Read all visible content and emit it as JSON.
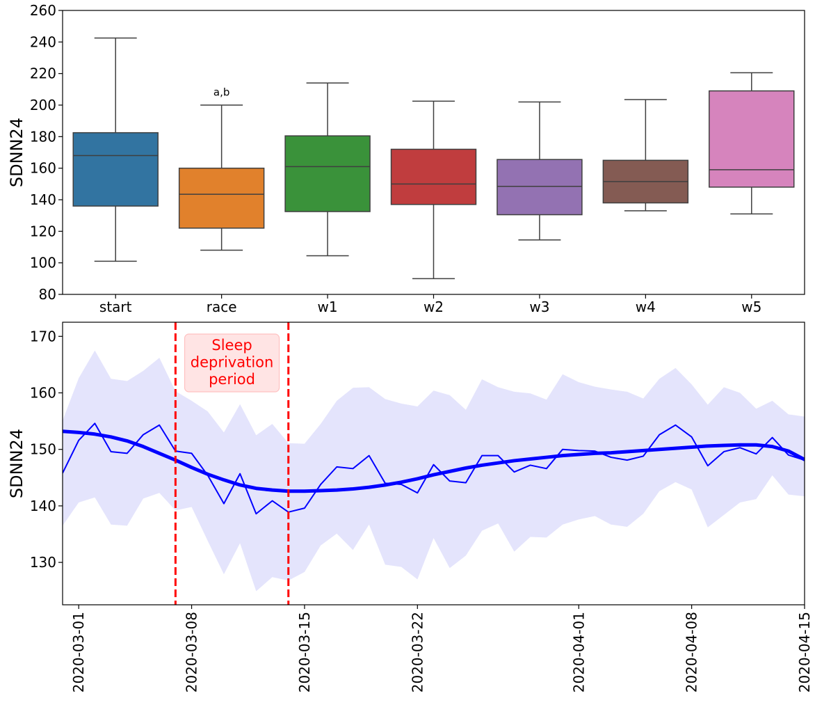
{
  "chart_data": [
    {
      "type": "box",
      "ylabel": "SDNN24",
      "ylim": [
        80,
        260
      ],
      "yticks": [
        80,
        100,
        120,
        140,
        160,
        180,
        200,
        220,
        240,
        260
      ],
      "grid": false,
      "categories": [
        "start",
        "race",
        "w1",
        "w2",
        "w3",
        "w4",
        "w5"
      ],
      "boxes": [
        {
          "label": "start",
          "color": "#3274a1",
          "whisker_low": 101,
          "q1": 136,
          "median": 168,
          "q3": 182.5,
          "whisker_high": 242.5
        },
        {
          "label": "race",
          "color": "#e1812c",
          "whisker_low": 108,
          "q1": 122,
          "median": 143.5,
          "q3": 160,
          "whisker_high": 200
        },
        {
          "label": "w1",
          "color": "#3a923a",
          "whisker_low": 104.5,
          "q1": 132.5,
          "median": 161,
          "q3": 180.5,
          "whisker_high": 214
        },
        {
          "label": "w2",
          "color": "#c03d3e",
          "whisker_low": 90,
          "q1": 137,
          "median": 150,
          "q3": 172,
          "whisker_high": 202.5
        },
        {
          "label": "w3",
          "color": "#9372b2",
          "whisker_low": 114.5,
          "q1": 130.5,
          "median": 148.5,
          "q3": 165.5,
          "whisker_high": 202
        },
        {
          "label": "w4",
          "color": "#845b53",
          "whisker_low": 133,
          "q1": 138,
          "median": 151.5,
          "q3": 165,
          "whisker_high": 203.5
        },
        {
          "label": "w5",
          "color": "#d684bd",
          "whisker_low": 131,
          "q1": 148,
          "median": 159,
          "q3": 209,
          "whisker_high": 220.5
        }
      ],
      "annotations": [
        {
          "category": "race",
          "text": "a,b",
          "y": 206
        }
      ]
    },
    {
      "type": "line",
      "ylabel": "SDNN24",
      "x_domain": [
        "2020-02-29",
        "2020-04-15"
      ],
      "ylim": [
        122.5,
        172.5
      ],
      "yticks": [
        130,
        140,
        150,
        160,
        170
      ],
      "xticks": [
        "2020-03-01",
        "2020-03-08",
        "2020-03-15",
        "2020-03-22",
        "2020-04-01",
        "2020-04-08",
        "2020-04-15"
      ],
      "grid": false,
      "series": [
        {
          "style": "daily",
          "color": "#0000ff",
          "x": [
            "2020-02-29",
            "2020-03-01",
            "2020-03-02",
            "2020-03-03",
            "2020-03-04",
            "2020-03-05",
            "2020-03-06",
            "2020-03-07",
            "2020-03-08",
            "2020-03-09",
            "2020-03-10",
            "2020-03-11",
            "2020-03-12",
            "2020-03-13",
            "2020-03-14",
            "2020-03-15",
            "2020-03-16",
            "2020-03-17",
            "2020-03-18",
            "2020-03-19",
            "2020-03-20",
            "2020-03-21",
            "2020-03-22",
            "2020-03-23",
            "2020-03-24",
            "2020-03-25",
            "2020-03-26",
            "2020-03-27",
            "2020-03-28",
            "2020-03-29",
            "2020-03-30",
            "2020-03-31",
            "2020-04-01",
            "2020-04-02",
            "2020-04-03",
            "2020-04-04",
            "2020-04-05",
            "2020-04-06",
            "2020-04-07",
            "2020-04-08",
            "2020-04-09",
            "2020-04-10",
            "2020-04-11",
            "2020-04-12",
            "2020-04-13",
            "2020-04-14",
            "2020-04-15"
          ],
          "y": [
            145.8,
            151.6,
            154.6,
            149.6,
            149.3,
            152.6,
            154.3,
            149.7,
            149.3,
            145.4,
            140.4,
            145.7,
            138.6,
            140.9,
            138.9,
            139.6,
            143.8,
            146.9,
            146.6,
            148.9,
            144.0,
            143.8,
            142.3,
            147.3,
            144.4,
            144.1,
            148.9,
            148.9,
            146.0,
            147.2,
            146.6,
            150.0,
            149.8,
            149.7,
            148.6,
            148.1,
            148.8,
            152.6,
            154.3,
            152.2,
            147.1,
            149.6,
            150.3,
            149.2,
            152.1,
            149.0,
            148.1
          ],
          "band_low": [
            136.5,
            140.6,
            141.5,
            136.7,
            136.5,
            141.3,
            142.3,
            139.2,
            139.8,
            133.8,
            127.9,
            133.4,
            124.9,
            127.4,
            126.8,
            128.3,
            133.0,
            135.1,
            132.2,
            136.7,
            129.6,
            129.2,
            127.0,
            134.3,
            129.0,
            131.2,
            135.6,
            136.9,
            131.9,
            134.5,
            134.4,
            136.7,
            137.6,
            138.2,
            136.7,
            136.3,
            138.6,
            142.6,
            144.2,
            142.9,
            136.2,
            138.4,
            140.6,
            141.2,
            145.4,
            142.0,
            141.7
          ],
          "band_high": [
            155.1,
            162.6,
            167.5,
            162.5,
            162.1,
            163.9,
            166.2,
            160.3,
            158.6,
            156.7,
            153.0,
            158.0,
            152.5,
            154.5,
            151.1,
            151.0,
            154.5,
            158.6,
            160.9,
            161.0,
            158.9,
            158.1,
            157.6,
            160.4,
            159.6,
            157.0,
            162.4,
            161.0,
            160.2,
            159.9,
            158.8,
            163.3,
            161.9,
            161.1,
            160.6,
            160.2,
            159.0,
            162.5,
            164.4,
            161.5,
            157.9,
            161.0,
            160.0,
            157.2,
            158.6,
            156.2,
            155.8
          ]
        },
        {
          "style": "smooth",
          "color": "#0000ff",
          "x": [
            "2020-02-29",
            "2020-03-01",
            "2020-03-02",
            "2020-03-03",
            "2020-03-04",
            "2020-03-05",
            "2020-03-06",
            "2020-03-07",
            "2020-03-08",
            "2020-03-09",
            "2020-03-10",
            "2020-03-11",
            "2020-03-12",
            "2020-03-13",
            "2020-03-14",
            "2020-03-15",
            "2020-03-16",
            "2020-03-17",
            "2020-03-18",
            "2020-03-19",
            "2020-03-20",
            "2020-03-21",
            "2020-03-22",
            "2020-03-23",
            "2020-03-24",
            "2020-03-25",
            "2020-03-26",
            "2020-03-27",
            "2020-03-28",
            "2020-03-29",
            "2020-03-30",
            "2020-03-31",
            "2020-04-01",
            "2020-04-02",
            "2020-04-03",
            "2020-04-04",
            "2020-04-05",
            "2020-04-06",
            "2020-04-07",
            "2020-04-08",
            "2020-04-09",
            "2020-04-10",
            "2020-04-11",
            "2020-04-12",
            "2020-04-13",
            "2020-04-14",
            "2020-04-15"
          ],
          "y": [
            153.2,
            153.0,
            152.7,
            152.2,
            151.5,
            150.5,
            149.3,
            148.1,
            146.8,
            145.6,
            144.6,
            143.7,
            143.1,
            142.8,
            142.6,
            142.6,
            142.7,
            142.8,
            143.0,
            143.3,
            143.7,
            144.2,
            144.8,
            145.5,
            146.1,
            146.7,
            147.2,
            147.6,
            148.0,
            148.3,
            148.6,
            148.9,
            149.1,
            149.3,
            149.4,
            149.6,
            149.8,
            150.0,
            150.2,
            150.4,
            150.6,
            150.7,
            150.8,
            150.8,
            150.5,
            149.7,
            148.2
          ]
        }
      ],
      "vlines": [
        {
          "x": "2020-03-07",
          "color": "#ff0000"
        },
        {
          "x": "2020-03-14",
          "color": "#ff0000"
        }
      ],
      "annotations": [
        {
          "lines": [
            "Sleep",
            "deprivation",
            "period"
          ],
          "color": "#ff0000",
          "box_color": "#ffe4e4",
          "box_edge": "#ffc0c0"
        }
      ]
    }
  ]
}
